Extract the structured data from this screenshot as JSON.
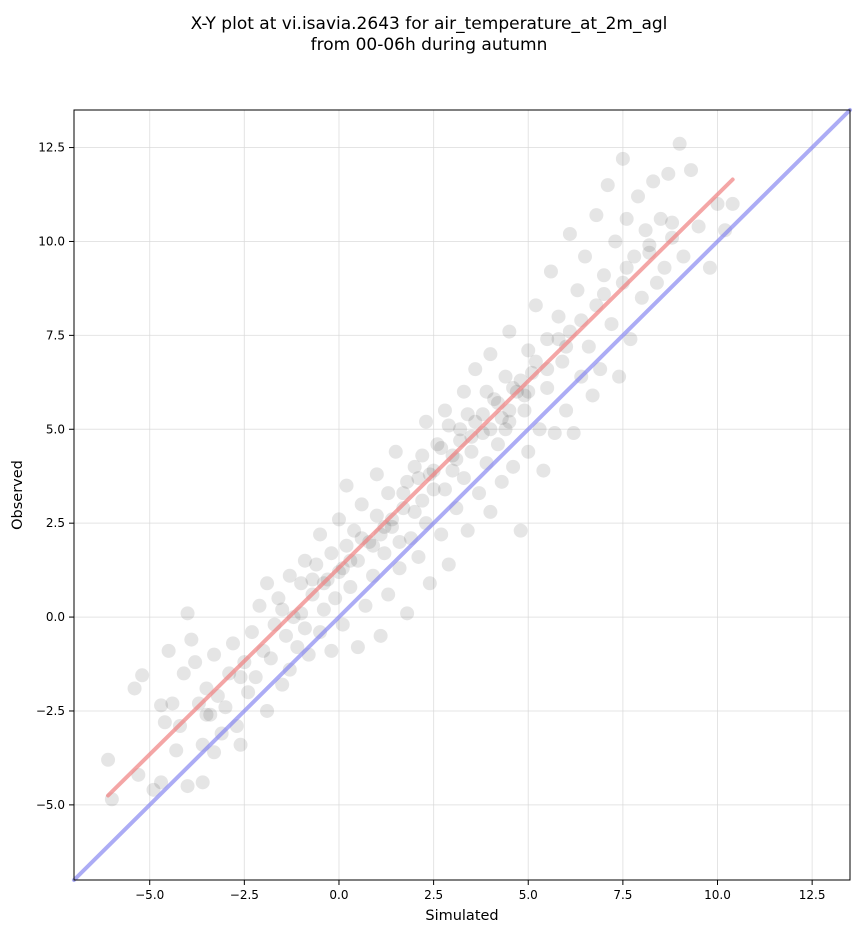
{
  "chart_data": {
    "type": "scatter",
    "title_line1": "X-Y plot at vi.isavia.2643 for air_temperature_at_2m_agl",
    "title_line2": "from 00-06h during autumn",
    "xlabel": "Simulated",
    "ylabel": "Observed",
    "xlim": [
      -7.0,
      13.5
    ],
    "ylim": [
      -7.0,
      13.5
    ],
    "xticks": [
      "−5.0",
      "−2.5",
      "0.0",
      "2.5",
      "5.0",
      "7.5",
      "10.0",
      "12.5"
    ],
    "yticks": [
      "−5.0",
      "−2.5",
      "0.0",
      "2.5",
      "5.0",
      "7.5",
      "10.0",
      "12.5"
    ],
    "xtick_values": [
      -5.0,
      -2.5,
      0.0,
      2.5,
      5.0,
      7.5,
      10.0,
      12.5
    ],
    "ytick_values": [
      -5.0,
      -2.5,
      0.0,
      2.5,
      5.0,
      7.5,
      10.0,
      12.5
    ],
    "grid": true,
    "point_color": "#000000",
    "regression_color": "#f08080",
    "identity_color": "#8080f0",
    "regression_line": {
      "x": [
        -6.1,
        10.4
      ],
      "y": [
        -4.75,
        11.65
      ]
    },
    "identity_line": {
      "x": [
        -7.0,
        13.5
      ],
      "y": [
        -7.0,
        13.5
      ]
    },
    "points": [
      [
        -6.1,
        -3.8
      ],
      [
        -6.0,
        -4.85
      ],
      [
        -5.4,
        -1.9
      ],
      [
        -5.2,
        -1.55
      ],
      [
        -5.3,
        -4.2
      ],
      [
        -4.9,
        -4.6
      ],
      [
        -4.7,
        -4.4
      ],
      [
        -4.7,
        -2.35
      ],
      [
        -4.6,
        -2.8
      ],
      [
        -4.5,
        -0.9
      ],
      [
        -4.4,
        -2.3
      ],
      [
        -4.3,
        -3.55
      ],
      [
        -4.2,
        -2.9
      ],
      [
        -4.1,
        -1.5
      ],
      [
        -4.0,
        -4.5
      ],
      [
        -4.0,
        0.1
      ],
      [
        -3.9,
        -0.6
      ],
      [
        -3.8,
        -1.2
      ],
      [
        -3.7,
        -2.3
      ],
      [
        -3.6,
        -4.4
      ],
      [
        -3.6,
        -3.4
      ],
      [
        -3.5,
        -1.9
      ],
      [
        -3.4,
        -2.6
      ],
      [
        -3.3,
        -3.6
      ],
      [
        -3.3,
        -1.0
      ],
      [
        -3.2,
        -2.1
      ],
      [
        -3.1,
        -3.1
      ],
      [
        -3.0,
        -2.4
      ],
      [
        -2.9,
        -1.5
      ],
      [
        -2.8,
        -0.7
      ],
      [
        -2.7,
        -2.9
      ],
      [
        -2.6,
        -3.4
      ],
      [
        -2.5,
        -1.2
      ],
      [
        -2.4,
        -2.0
      ],
      [
        -2.3,
        -0.4
      ],
      [
        -2.2,
        -1.6
      ],
      [
        -2.1,
        0.3
      ],
      [
        -2.0,
        -0.9
      ],
      [
        -1.9,
        -2.5
      ],
      [
        -1.9,
        0.9
      ],
      [
        -1.8,
        -1.1
      ],
      [
        -1.7,
        -0.2
      ],
      [
        -1.6,
        0.5
      ],
      [
        -1.5,
        -1.8
      ],
      [
        -1.4,
        -0.5
      ],
      [
        -1.3,
        1.1
      ],
      [
        -1.3,
        -1.4
      ],
      [
        -1.2,
        0.0
      ],
      [
        -1.1,
        -0.8
      ],
      [
        -1.0,
        0.9
      ],
      [
        -0.9,
        1.5
      ],
      [
        -0.9,
        -0.3
      ],
      [
        -0.8,
        -1.0
      ],
      [
        -0.7,
        0.6
      ],
      [
        -0.6,
        1.4
      ],
      [
        -0.5,
        -0.4
      ],
      [
        -0.5,
        2.2
      ],
      [
        -0.4,
        0.2
      ],
      [
        -0.3,
        1.0
      ],
      [
        -0.2,
        -0.9
      ],
      [
        -0.2,
        1.7
      ],
      [
        -0.1,
        0.5
      ],
      [
        0.0,
        2.6
      ],
      [
        0.0,
        1.2
      ],
      [
        0.1,
        -0.2
      ],
      [
        0.2,
        1.9
      ],
      [
        0.2,
        3.5
      ],
      [
        0.3,
        0.8
      ],
      [
        0.4,
        2.3
      ],
      [
        0.5,
        1.5
      ],
      [
        0.5,
        -0.8
      ],
      [
        0.6,
        3.0
      ],
      [
        0.7,
        0.3
      ],
      [
        0.8,
        2.0
      ],
      [
        0.9,
        1.1
      ],
      [
        1.0,
        3.8
      ],
      [
        1.0,
        2.7
      ],
      [
        1.1,
        -0.5
      ],
      [
        1.2,
        1.7
      ],
      [
        1.3,
        3.3
      ],
      [
        1.3,
        0.6
      ],
      [
        1.4,
        2.4
      ],
      [
        1.5,
        4.4
      ],
      [
        1.6,
        1.3
      ],
      [
        1.7,
        2.9
      ],
      [
        1.8,
        0.1
      ],
      [
        1.8,
        3.6
      ],
      [
        1.9,
        2.1
      ],
      [
        2.0,
        4.0
      ],
      [
        2.1,
        1.6
      ],
      [
        2.2,
        3.1
      ],
      [
        2.3,
        5.2
      ],
      [
        2.3,
        2.5
      ],
      [
        2.4,
        0.9
      ],
      [
        2.5,
        3.9
      ],
      [
        2.6,
        4.6
      ],
      [
        2.7,
        2.2
      ],
      [
        2.8,
        3.4
      ],
      [
        2.8,
        5.5
      ],
      [
        2.9,
        1.4
      ],
      [
        3.0,
        4.3
      ],
      [
        3.1,
        2.9
      ],
      [
        3.2,
        5.0
      ],
      [
        3.3,
        6.0
      ],
      [
        3.3,
        3.7
      ],
      [
        3.4,
        2.3
      ],
      [
        3.5,
        4.8
      ],
      [
        3.6,
        6.6
      ],
      [
        3.7,
        3.3
      ],
      [
        3.8,
        5.4
      ],
      [
        3.9,
        4.1
      ],
      [
        4.0,
        7.0
      ],
      [
        4.0,
        2.8
      ],
      [
        4.1,
        5.8
      ],
      [
        4.2,
        4.6
      ],
      [
        4.3,
        3.6
      ],
      [
        4.4,
        6.4
      ],
      [
        4.5,
        5.2
      ],
      [
        4.5,
        7.6
      ],
      [
        4.6,
        4.0
      ],
      [
        4.7,
        6.0
      ],
      [
        4.8,
        2.3
      ],
      [
        4.9,
        5.5
      ],
      [
        5.0,
        7.1
      ],
      [
        5.0,
        4.4
      ],
      [
        5.1,
        6.5
      ],
      [
        5.2,
        8.3
      ],
      [
        5.3,
        5.0
      ],
      [
        5.4,
        3.9
      ],
      [
        5.5,
        7.4
      ],
      [
        5.5,
        6.1
      ],
      [
        5.6,
        9.2
      ],
      [
        5.7,
        4.9
      ],
      [
        5.8,
        8.0
      ],
      [
        5.9,
        6.8
      ],
      [
        6.0,
        5.5
      ],
      [
        6.1,
        10.2
      ],
      [
        6.1,
        7.6
      ],
      [
        6.2,
        4.9
      ],
      [
        6.3,
        8.7
      ],
      [
        6.4,
        6.4
      ],
      [
        6.5,
        9.6
      ],
      [
        6.6,
        7.2
      ],
      [
        6.7,
        5.9
      ],
      [
        6.8,
        10.7
      ],
      [
        6.8,
        8.3
      ],
      [
        6.9,
        6.6
      ],
      [
        7.0,
        9.1
      ],
      [
        7.1,
        11.5
      ],
      [
        7.2,
        7.8
      ],
      [
        7.3,
        10.0
      ],
      [
        7.4,
        6.4
      ],
      [
        7.5,
        8.9
      ],
      [
        7.5,
        12.2
      ],
      [
        7.6,
        10.6
      ],
      [
        7.7,
        7.4
      ],
      [
        7.8,
        9.6
      ],
      [
        7.9,
        11.2
      ],
      [
        8.0,
        8.5
      ],
      [
        8.1,
        10.3
      ],
      [
        8.2,
        9.7
      ],
      [
        8.3,
        11.6
      ],
      [
        8.4,
        8.9
      ],
      [
        8.5,
        10.6
      ],
      [
        8.6,
        9.3
      ],
      [
        8.7,
        11.8
      ],
      [
        8.8,
        10.1
      ],
      [
        9.0,
        12.6
      ],
      [
        9.1,
        9.6
      ],
      [
        9.3,
        11.9
      ],
      [
        9.5,
        10.4
      ],
      [
        9.8,
        9.3
      ],
      [
        10.0,
        11.0
      ],
      [
        10.2,
        10.3
      ],
      [
        10.4,
        11.0
      ],
      [
        0.3,
        1.5
      ],
      [
        0.9,
        1.9
      ],
      [
        1.4,
        2.6
      ],
      [
        2.0,
        2.8
      ],
      [
        2.5,
        3.4
      ],
      [
        3.0,
        3.9
      ],
      [
        3.5,
        4.4
      ],
      [
        4.0,
        5.0
      ],
      [
        4.5,
        5.5
      ],
      [
        5.0,
        6.0
      ],
      [
        5.5,
        6.6
      ],
      [
        6.0,
        7.2
      ],
      [
        1.2,
        2.4
      ],
      [
        2.2,
        4.3
      ],
      [
        2.9,
        5.1
      ],
      [
        3.6,
        5.2
      ],
      [
        4.2,
        5.7
      ],
      [
        4.8,
        6.3
      ],
      [
        3.2,
        4.7
      ],
      [
        3.8,
        4.9
      ],
      [
        4.3,
        5.3
      ],
      [
        2.7,
        4.5
      ],
      [
        1.7,
        3.3
      ],
      [
        -0.4,
        0.9
      ],
      [
        -1.0,
        0.1
      ],
      [
        -2.6,
        -1.6
      ],
      [
        -3.5,
        -2.6
      ],
      [
        0.6,
        2.1
      ],
      [
        1.6,
        2.0
      ],
      [
        2.4,
        3.8
      ],
      [
        3.4,
        5.4
      ],
      [
        4.6,
        6.1
      ],
      [
        5.2,
        6.8
      ],
      [
        5.8,
        7.4
      ],
      [
        6.4,
        7.9
      ],
      [
        7.0,
        8.6
      ],
      [
        7.6,
        9.3
      ],
      [
        8.2,
        9.9
      ],
      [
        8.8,
        10.5
      ],
      [
        3.1,
        4.2
      ],
      [
        3.9,
        6.0
      ],
      [
        4.4,
        5.0
      ],
      [
        4.9,
        5.9
      ],
      [
        2.1,
        3.7
      ],
      [
        1.1,
        2.2
      ],
      [
        0.1,
        1.3
      ],
      [
        -0.7,
        1.0
      ],
      [
        -1.5,
        0.2
      ]
    ]
  }
}
